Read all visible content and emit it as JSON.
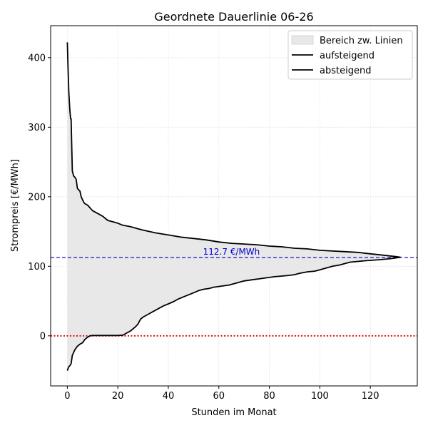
{
  "chart_data": {
    "type": "line",
    "title": "Geordnete Dauerlinie 06-26",
    "xlabel": "Stunden im Monat",
    "ylabel": "Strompreis [€/MWh]",
    "xlim": [
      -6.6,
      138.6
    ],
    "ylim": [
      -72,
      446
    ],
    "xticks": [
      0,
      20,
      40,
      60,
      80,
      100,
      120
    ],
    "yticks": [
      0,
      100,
      200,
      300,
      400
    ],
    "grid": true,
    "legend_position": "top-right",
    "legend": {
      "fill_label": "Bereich zw. Linien",
      "ascending_label": "aufsteigend",
      "descending_label": "absteigend"
    },
    "reference_lines": {
      "mean": {
        "value": 112.7,
        "label": "112.7 €/MWh",
        "color": "#0000cc"
      },
      "zero": {
        "value": 0,
        "color": "#e00000"
      }
    },
    "colors": {
      "line": "#000000",
      "fill": "#e8e8e8",
      "grid": "#dddddd"
    },
    "series": [
      {
        "name": "aufsteigend",
        "x": [
          0,
          0.5,
          1,
          1.5,
          2,
          3,
          4,
          5,
          6,
          7,
          8,
          9,
          10,
          12,
          14,
          16,
          18,
          20,
          22,
          23,
          24,
          25,
          26,
          27,
          28,
          29,
          30,
          32,
          34,
          36,
          38,
          40,
          42,
          44,
          46,
          48,
          50,
          52,
          54,
          56,
          58,
          60,
          62,
          64,
          66,
          68,
          70,
          72,
          74,
          76,
          78,
          80,
          82,
          85,
          88,
          90,
          92,
          95,
          98,
          100,
          102,
          105,
          108,
          110,
          112,
          115,
          118,
          122,
          125,
          128,
          130,
          132
        ],
        "values": [
          -50,
          -45,
          -43,
          -40,
          -28,
          -20,
          -15,
          -12,
          -10,
          -5,
          -2,
          0,
          0.5,
          0.5,
          0.5,
          0.5,
          0.5,
          0.5,
          1,
          3,
          5,
          7,
          10,
          13,
          17,
          24,
          27,
          31,
          35,
          39,
          43,
          46,
          49,
          53,
          56,
          59,
          62,
          65,
          67,
          68,
          70,
          71,
          72,
          73,
          75,
          77,
          79,
          80,
          81,
          82,
          83,
          84,
          85,
          86,
          87,
          88,
          90,
          92,
          93,
          95,
          97,
          100,
          102,
          104,
          106,
          107,
          108,
          109,
          110,
          111,
          112,
          113
        ]
      },
      {
        "name": "absteigend",
        "x": [
          0,
          0.3,
          0.6,
          1,
          1.3,
          1.5,
          1.7,
          2,
          2.5,
          3,
          3.5,
          4,
          4.5,
          5,
          5.5,
          6,
          6.5,
          7,
          8,
          9,
          10,
          12,
          14,
          16,
          18,
          20,
          22,
          25,
          28,
          30,
          35,
          40,
          45,
          50,
          55,
          60,
          65,
          70,
          75,
          80,
          85,
          90,
          95,
          100,
          105,
          110,
          115,
          120,
          125,
          130,
          132
        ],
        "values": [
          422,
          385,
          350,
          325,
          312,
          312,
          280,
          237,
          230,
          228,
          225,
          212,
          210,
          208,
          200,
          196,
          192,
          190,
          188,
          184,
          180,
          176,
          172,
          166,
          164,
          162,
          159,
          157,
          154,
          152,
          148,
          145,
          142,
          140,
          138,
          135,
          133,
          132,
          131,
          129,
          128,
          126,
          125,
          123,
          122,
          121,
          120,
          118,
          116,
          114,
          113
        ]
      }
    ]
  }
}
